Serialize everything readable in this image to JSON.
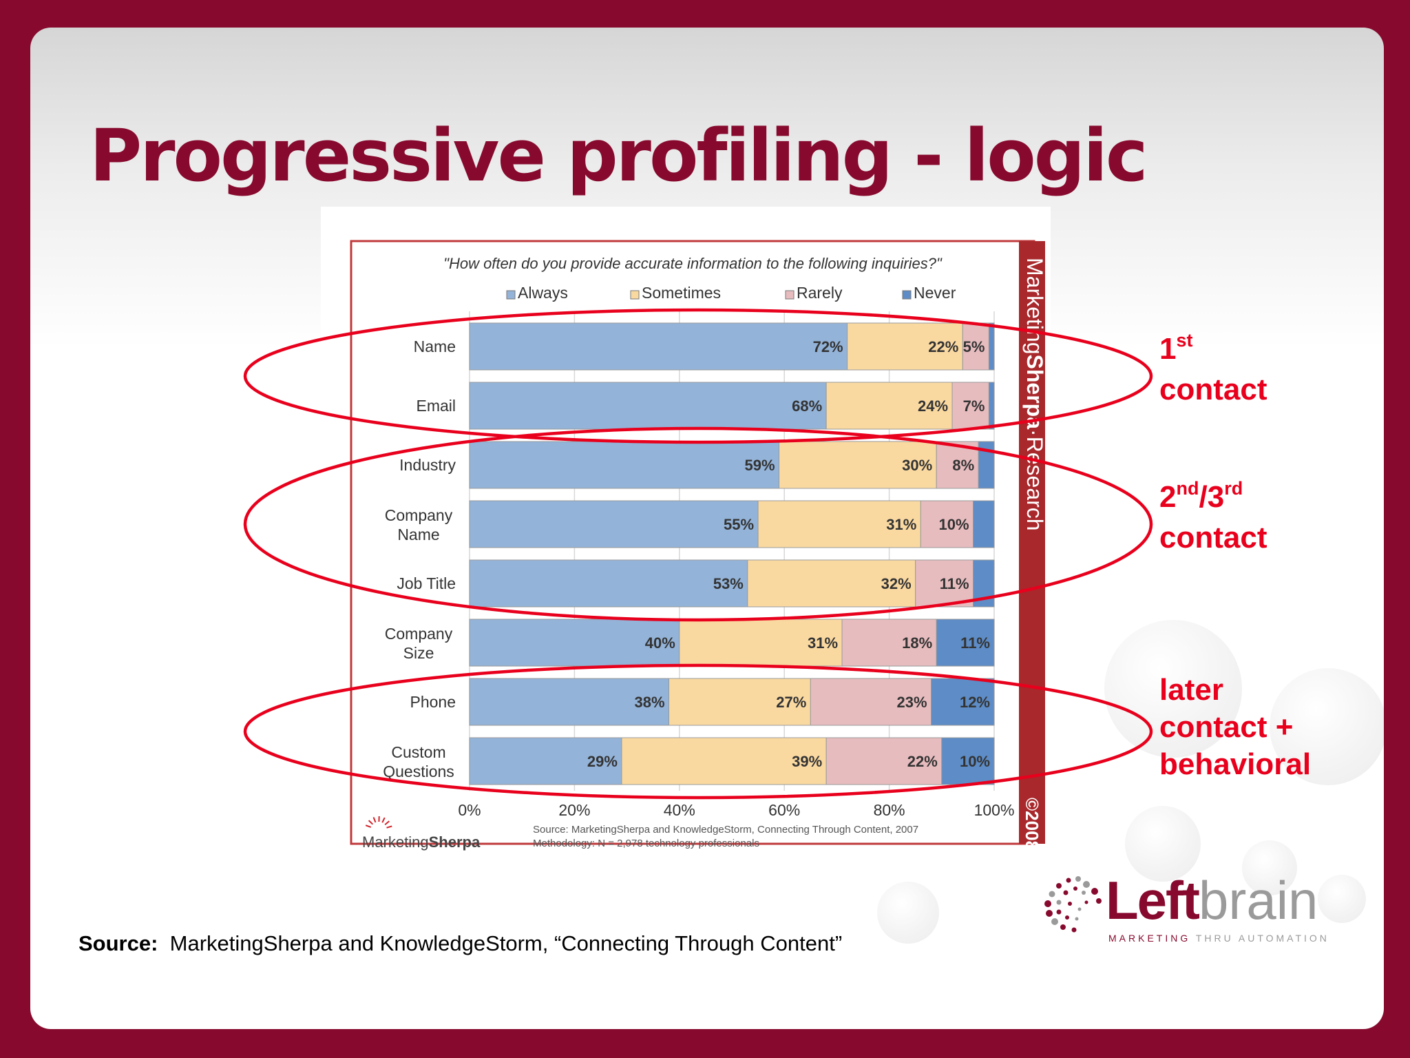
{
  "slide": {
    "title": "Progressive profiling - logic",
    "source_label": "Source:",
    "source_text": "MarketingSherpa and KnowledgeStorm, “Connecting Through Content”",
    "colors": {
      "frame": "#870a2e",
      "title": "#870a2e",
      "annotation": "#e8001c"
    }
  },
  "annotations": [
    {
      "name": "first-contact",
      "main": "1",
      "sup": "st",
      "rest": "",
      "sup2": "",
      "line2": "contact",
      "line3": "",
      "rows": [
        "Name",
        "Email"
      ]
    },
    {
      "name": "second-third-contact",
      "main": "2",
      "sup": "nd",
      "rest": "/3",
      "sup2": "rd",
      "line2": "contact",
      "line3": "",
      "rows": [
        "Industry",
        "Company Name",
        "Job Title"
      ]
    },
    {
      "name": "later-contact",
      "main": "later",
      "sup": "",
      "rest": "",
      "sup2": "",
      "line2": "contact +",
      "line3": "behavioral",
      "rows": [
        "Phone",
        "Custom Questions"
      ]
    }
  ],
  "logo": {
    "word_left": "Left",
    "word_right": "brain",
    "tagline_a": "MARKETING",
    "tagline_b": "THRU AUTOMATION",
    "colors": {
      "primary": "#870a2e",
      "secondary": "#9a9a9a"
    }
  },
  "chart_data": {
    "type": "bar",
    "orientation": "horizontal",
    "stacked": true,
    "title": "\"How often do you provide accurate information to the following inquiries?\"",
    "categories": [
      [
        "Name"
      ],
      [
        "Email"
      ],
      [
        "Industry"
      ],
      [
        "Company",
        "Name"
      ],
      [
        "Job Title"
      ],
      [
        "Company",
        "Size"
      ],
      [
        "Phone"
      ],
      [
        "Custom",
        "Questions"
      ]
    ],
    "series": [
      {
        "name": "Always",
        "color": "#93b3d8",
        "values": [
          72,
          68,
          59,
          55,
          53,
          40,
          38,
          29
        ]
      },
      {
        "name": "Sometimes",
        "color": "#fad9a1",
        "values": [
          22,
          24,
          30,
          31,
          32,
          31,
          27,
          39
        ]
      },
      {
        "name": "Rarely",
        "color": "#e7bcbf",
        "values": [
          5,
          7,
          8,
          10,
          11,
          18,
          23,
          22
        ]
      },
      {
        "name": "Never",
        "color": "#5d8cc6",
        "values": [
          1,
          1,
          3,
          4,
          4,
          11,
          12,
          10
        ]
      }
    ],
    "data_labels": [
      [
        "72%",
        "22%",
        "5%",
        ""
      ],
      [
        "68%",
        "24%",
        "7%",
        ""
      ],
      [
        "59%",
        "30%",
        "8%",
        ""
      ],
      [
        "55%",
        "31%",
        "10%",
        ""
      ],
      [
        "53%",
        "32%",
        "11%",
        ""
      ],
      [
        "40%",
        "31%",
        "18%",
        "11%"
      ],
      [
        "38%",
        "27%",
        "23%",
        "12%"
      ],
      [
        "29%",
        "39%",
        "22%",
        "10%"
      ]
    ],
    "xlim": [
      0,
      100
    ],
    "x_ticks": [
      0,
      20,
      40,
      60,
      80,
      100
    ],
    "x_tick_labels": [
      "0%",
      "20%",
      "40%",
      "60%",
      "80%",
      "100%"
    ],
    "grid": true,
    "legend": "top",
    "brand_side_a": "Marketing",
    "brand_side_b": "Sherpa",
    "brand_side_c": "·Research",
    "copyright": "©2008",
    "brand_logo_a": "Marketing",
    "brand_logo_b": "Sherpa",
    "source_note_1": "Source: MarketingSherpa and KnowledgeStorm,  Connecting Through Content, 2007",
    "source_note_2": "Methodology: N = 2,978 technology professionals",
    "colors": {
      "frame": "#c0393b",
      "sidebar": "#a8282c"
    }
  }
}
